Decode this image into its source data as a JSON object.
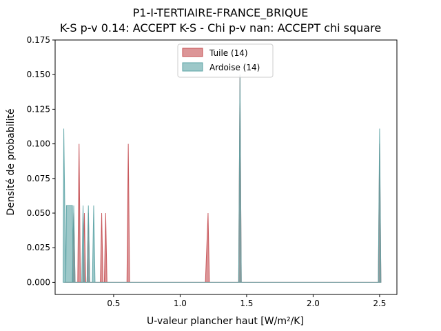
{
  "chart_data": {
    "type": "area",
    "title_line1": "P1-I-TERTIAIRE-FRANCE_BRIQUE",
    "title_line2": "K-S p-v 0.14: ACCEPT K-S - Chi p-v nan: ACCEPT chi square",
    "xlabel": "U-valeur plancher haut [W/m²/K]",
    "ylabel": "Densité de probabilité",
    "xlim": [
      0.06,
      2.63
    ],
    "ylim": [
      -0.00875,
      0.175
    ],
    "x_ticks": [
      0.5,
      1.0,
      1.5,
      2.0,
      2.5
    ],
    "x_tick_labels": [
      "0.5",
      "1.0",
      "1.5",
      "2.0",
      "2.5"
    ],
    "y_ticks": [
      0.0,
      0.025,
      0.05,
      0.075,
      0.1,
      0.125,
      0.15,
      0.175
    ],
    "y_tick_labels": [
      "0.000",
      "0.025",
      "0.050",
      "0.075",
      "0.100",
      "0.125",
      "0.150",
      "0.175"
    ],
    "legend_position": "upper center",
    "series": [
      {
        "name": "Tuile (14)",
        "color": "#c44e52",
        "points": [
          [
            0.13,
            0.0
          ],
          [
            0.19,
            0.0
          ],
          [
            0.2,
            0.05
          ],
          [
            0.21,
            0.0
          ],
          [
            0.23,
            0.0
          ],
          [
            0.24,
            0.1
          ],
          [
            0.25,
            0.0
          ],
          [
            0.27,
            0.0
          ],
          [
            0.28,
            0.05
          ],
          [
            0.29,
            0.0
          ],
          [
            0.3,
            0.0
          ],
          [
            0.31,
            0.05
          ],
          [
            0.32,
            0.0
          ],
          [
            0.4,
            0.0
          ],
          [
            0.41,
            0.05
          ],
          [
            0.42,
            0.0
          ],
          [
            0.43,
            0.0
          ],
          [
            0.44,
            0.05
          ],
          [
            0.45,
            0.0
          ],
          [
            0.6,
            0.0
          ],
          [
            0.61,
            0.1
          ],
          [
            0.62,
            0.0
          ],
          [
            1.19,
            0.0
          ],
          [
            1.21,
            0.05
          ],
          [
            1.22,
            0.0
          ],
          [
            1.44,
            0.0
          ],
          [
            1.45,
            0.15
          ],
          [
            1.46,
            0.0
          ],
          [
            2.49,
            0.0
          ],
          [
            2.5,
            0.1
          ],
          [
            2.51,
            0.0
          ]
        ]
      },
      {
        "name": "Ardoise (14)",
        "color": "#5ba3a5",
        "points": [
          [
            0.12,
            0.0
          ],
          [
            0.125,
            0.111
          ],
          [
            0.14,
            0.0
          ],
          [
            0.145,
            0.0555
          ],
          [
            0.19,
            0.0555
          ],
          [
            0.195,
            0.0
          ],
          [
            0.19,
            0.0
          ],
          [
            0.2,
            0.0555
          ],
          [
            0.21,
            0.0
          ],
          [
            0.26,
            0.0
          ],
          [
            0.27,
            0.0555
          ],
          [
            0.28,
            0.0
          ],
          [
            0.3,
            0.0
          ],
          [
            0.31,
            0.0555
          ],
          [
            0.32,
            0.0
          ],
          [
            0.34,
            0.0
          ],
          [
            0.35,
            0.0555
          ],
          [
            0.36,
            0.0
          ],
          [
            1.44,
            0.0
          ],
          [
            1.45,
            0.15
          ],
          [
            1.46,
            0.0
          ],
          [
            2.49,
            0.0
          ],
          [
            2.5,
            0.111
          ],
          [
            2.51,
            0.0
          ]
        ]
      }
    ]
  }
}
